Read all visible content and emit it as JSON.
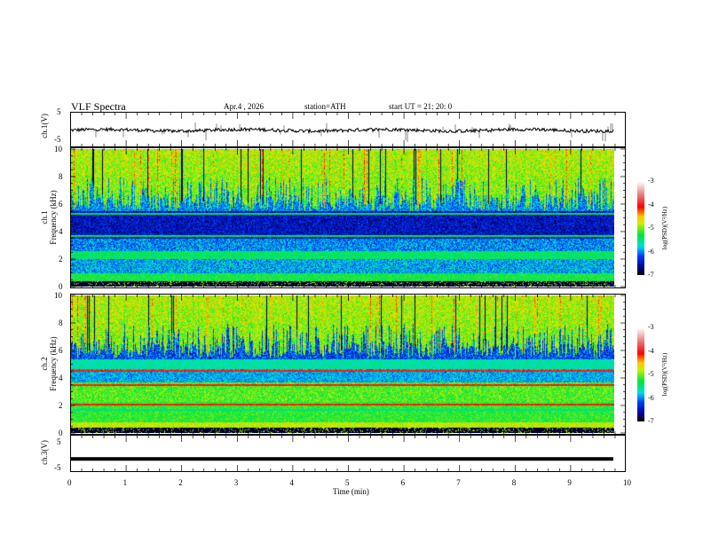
{
  "header": {
    "title": "VLF  Spectra",
    "date": "Apr.4  , 2026",
    "station": "station=ATH",
    "start_ut": "start  UT  =   21: 20: 0"
  },
  "chart_data": [
    {
      "type": "line",
      "name": "ch1-waveform",
      "ylabel": "ch.1(V)",
      "ylim": [
        -5,
        5
      ],
      "yticks": [
        "5",
        "-5"
      ],
      "xlim": [
        0,
        10
      ],
      "data_end_min": 9.8,
      "mean_level_V": -1.5
    },
    {
      "type": "heatmap",
      "name": "ch1-spectrogram",
      "ylabel_line1": "ch.1",
      "ylabel_line2": "Frequency  (kHz)",
      "ylim": [
        0,
        10
      ],
      "yticks": [
        "0",
        "2",
        "4",
        "6",
        "8",
        "10"
      ],
      "xlim": [
        0,
        10
      ],
      "colorbar": {
        "label": "log(PSD)(V²/Hz)",
        "range": [
          -7,
          -3
        ],
        "ticks": [
          "-3",
          "-4",
          "-5",
          "-6",
          "-7"
        ]
      }
    },
    {
      "type": "heatmap",
      "name": "ch2-spectrogram",
      "ylabel_line1": "ch.2",
      "ylabel_line2": "Frequency  (kHz)",
      "ylim": [
        0,
        10
      ],
      "yticks": [
        "0",
        "2",
        "4",
        "6",
        "8",
        "10"
      ],
      "xlim": [
        0,
        10
      ],
      "colorbar": {
        "label": "log(PSD)(V²/Hz)",
        "range": [
          -7,
          -3
        ],
        "ticks": [
          "-3",
          "-4",
          "-5",
          "-6",
          "-7"
        ]
      }
    },
    {
      "type": "line",
      "name": "ch3-waveform",
      "ylabel": "ch.3(V)",
      "ylim": [
        -5,
        5
      ],
      "yticks": [
        "5",
        "-5"
      ],
      "xlim": [
        0,
        10
      ],
      "data_end_min": 9.8,
      "mean_level_V": -1.5
    }
  ],
  "xaxis": {
    "label": "Time  (min)",
    "ticks": [
      "0",
      "1",
      "2",
      "3",
      "4",
      "5",
      "6",
      "7",
      "8",
      "9",
      "10"
    ]
  }
}
